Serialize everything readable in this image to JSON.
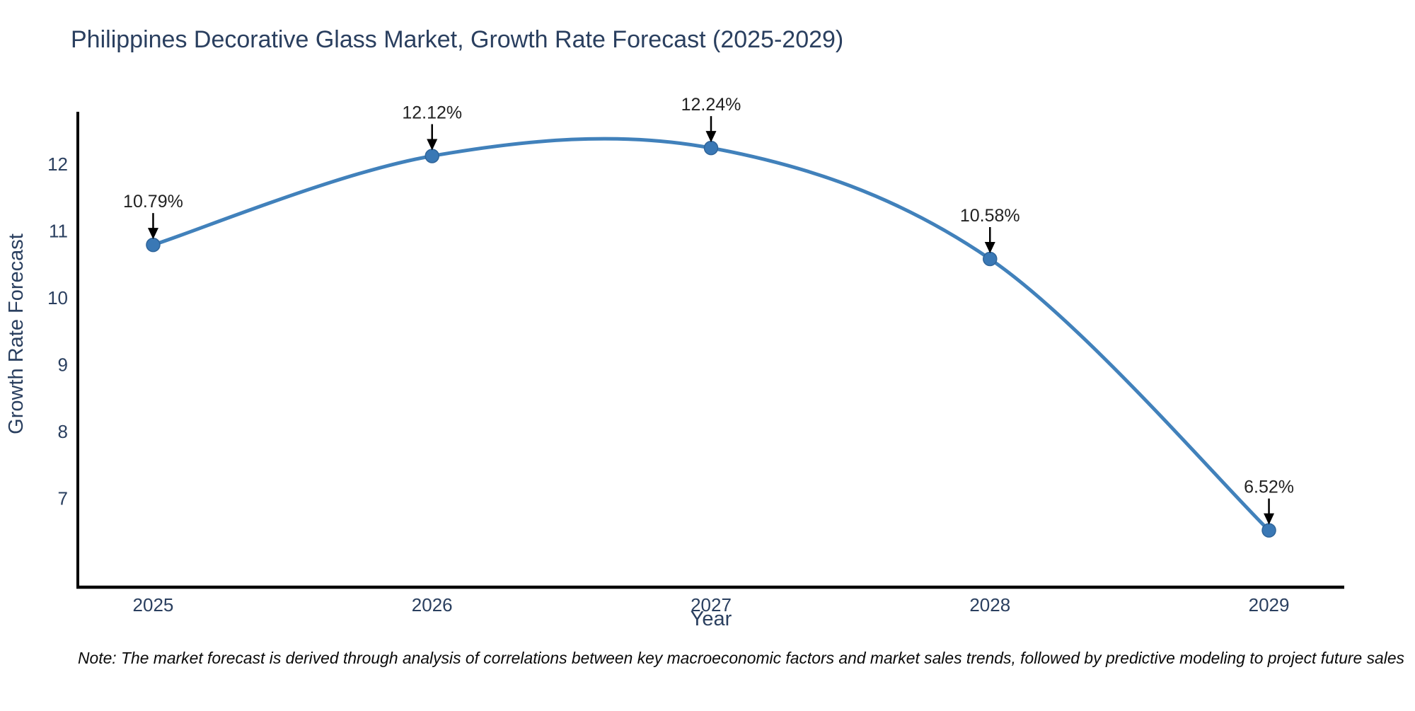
{
  "note": "Note: The market forecast is derived through analysis of correlations between key macroeconomic factors and market sales trends, followed by predictive modeling to project future sales",
  "chart_data": {
    "type": "line",
    "title": "Philippines Decorative Glass Market, Growth Rate Forecast (2025-2029)",
    "xlabel": "Year",
    "ylabel": "Growth Rate Forecast",
    "x": [
      2025,
      2026,
      2027,
      2028,
      2029
    ],
    "series": [
      {
        "name": "Growth Rate Forecast",
        "values": [
          10.79,
          12.12,
          12.24,
          10.58,
          6.52
        ],
        "point_labels": [
          "10.79%",
          "12.12%",
          "12.24%",
          "10.58%",
          "6.52%"
        ]
      }
    ],
    "x_tick_labels": [
      "2025",
      "2026",
      "2027",
      "2028",
      "2029"
    ],
    "y_tick_values": [
      7,
      8,
      9,
      10,
      11,
      12
    ],
    "xlim": [
      2024.73,
      2029.27
    ],
    "ylim": [
      5.67,
      12.76
    ],
    "line_shape": "spline",
    "grid": false,
    "legend": "none",
    "colors": {
      "line": "#4181bb",
      "marker": "#3a78b5",
      "marker_edge": "#2f6499",
      "axis": "#000000",
      "text": "#2a3f5f",
      "annotation": "#222222",
      "arrow": "#000000"
    }
  }
}
